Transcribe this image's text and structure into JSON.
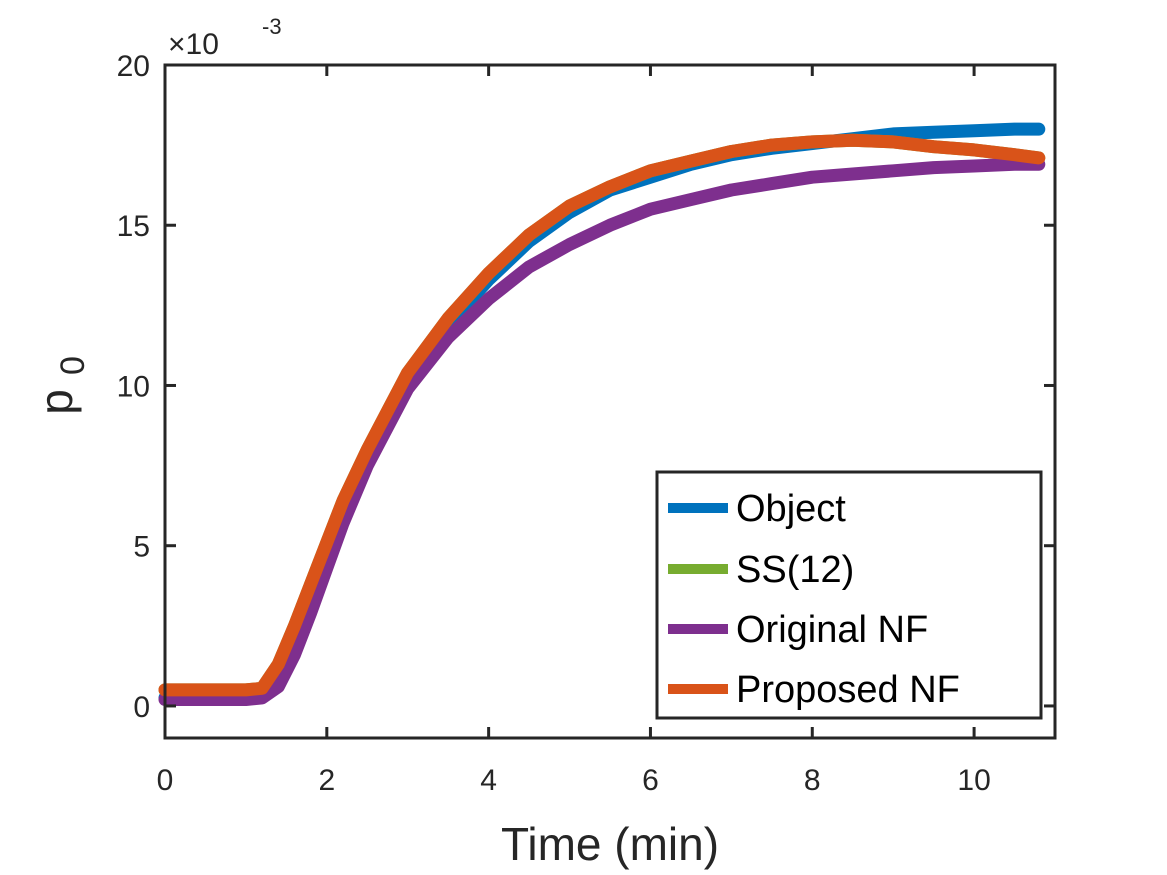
{
  "chart_data": {
    "type": "line",
    "title": "",
    "xlabel": "Time (min)",
    "ylabel": "p",
    "ylabel_subscript": "0",
    "xlim": [
      0,
      11
    ],
    "ylim": [
      -0.001,
      0.02
    ],
    "xticks": [
      0,
      2,
      4,
      6,
      8,
      10
    ],
    "xtick_labels": [
      "0",
      "2",
      "4",
      "6",
      "8",
      "10"
    ],
    "yticks": [
      0,
      0.005,
      0.01,
      0.015,
      0.02
    ],
    "ytick_labels": [
      "0",
      "5",
      "10",
      "15",
      "20"
    ],
    "exponent_base": "×10",
    "exponent_power": "-3",
    "grid": false,
    "legend_position": "bottom-right",
    "series": [
      {
        "name": "Object",
        "color": "#0072BD",
        "x": [
          0,
          0.5,
          1.0,
          1.2,
          1.4,
          1.6,
          1.8,
          2.0,
          2.2,
          2.5,
          3.0,
          3.5,
          4.0,
          4.5,
          5.0,
          5.5,
          6.0,
          6.5,
          7.0,
          7.5,
          8.0,
          8.5,
          9.0,
          9.5,
          10.0,
          10.5,
          10.8
        ],
        "values": [
          0.00025,
          0.00025,
          0.00025,
          0.0003,
          0.0011,
          0.0022,
          0.0035,
          0.0048,
          0.0061,
          0.0078,
          0.0102,
          0.0119,
          0.0133,
          0.0145,
          0.0154,
          0.0161,
          0.0165,
          0.0169,
          0.0172,
          0.0174,
          0.01755,
          0.0177,
          0.01785,
          0.0179,
          0.01795,
          0.018,
          0.018
        ]
      },
      {
        "name": "SS(12)",
        "color": "#77AC30",
        "x": [
          0,
          0.5,
          1.0,
          1.2,
          1.4,
          1.6,
          1.8,
          2.0,
          2.2,
          2.5,
          3.0,
          3.5,
          4.0,
          4.5,
          5.0,
          5.5,
          6.0,
          6.5,
          7.0,
          7.5,
          8.0,
          8.5,
          9.0,
          9.5,
          10.0,
          10.5,
          10.8
        ],
        "values": [
          0.0005,
          0.0005,
          0.0005,
          0.00055,
          0.0013,
          0.0025,
          0.0038,
          0.0051,
          0.0064,
          0.008,
          0.0104,
          0.0121,
          0.0135,
          0.0147,
          0.0156,
          0.0162,
          0.0167,
          0.017,
          0.0173,
          0.0175,
          0.0176,
          0.01765,
          0.0176,
          0.01745,
          0.01735,
          0.0172,
          0.0171
        ]
      },
      {
        "name": "Original NF",
        "color": "#7E2F8E",
        "x": [
          0,
          0.5,
          1.0,
          1.2,
          1.4,
          1.6,
          1.8,
          2.0,
          2.2,
          2.5,
          3.0,
          3.5,
          4.0,
          4.5,
          5.0,
          5.5,
          6.0,
          6.5,
          7.0,
          7.5,
          8.0,
          8.5,
          9.0,
          9.5,
          10.0,
          10.5,
          10.8
        ],
        "values": [
          0.0002,
          0.0002,
          0.0002,
          0.00025,
          0.0006,
          0.0016,
          0.0029,
          0.0043,
          0.0057,
          0.0075,
          0.0099,
          0.0115,
          0.0127,
          0.0137,
          0.0144,
          0.015,
          0.0155,
          0.0158,
          0.0161,
          0.0163,
          0.0165,
          0.0166,
          0.0167,
          0.0168,
          0.01685,
          0.0169,
          0.0169
        ]
      },
      {
        "name": "Proposed NF",
        "color": "#D95319",
        "x": [
          0,
          0.5,
          1.0,
          1.2,
          1.4,
          1.6,
          1.8,
          2.0,
          2.2,
          2.5,
          3.0,
          3.5,
          4.0,
          4.5,
          5.0,
          5.5,
          6.0,
          6.5,
          7.0,
          7.5,
          8.0,
          8.5,
          9.0,
          9.5,
          10.0,
          10.5,
          10.8
        ],
        "values": [
          0.0005,
          0.0005,
          0.0005,
          0.00055,
          0.0013,
          0.0025,
          0.0038,
          0.0051,
          0.0064,
          0.008,
          0.0104,
          0.0121,
          0.0135,
          0.0147,
          0.0156,
          0.0162,
          0.0167,
          0.017,
          0.0173,
          0.0175,
          0.0176,
          0.01765,
          0.0176,
          0.01745,
          0.01735,
          0.0172,
          0.0171
        ]
      }
    ]
  }
}
